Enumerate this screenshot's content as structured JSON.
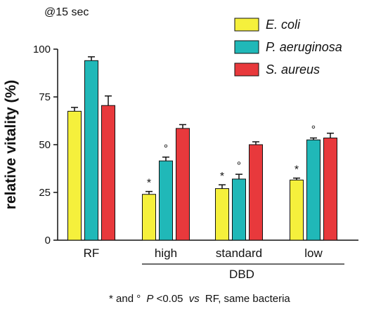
{
  "chart_data": {
    "type": "bar",
    "title": "@15 sec",
    "ylabel": "relative vitality (%)",
    "ylim": [
      0,
      100
    ],
    "yticks": [
      0,
      25,
      50,
      75,
      100
    ],
    "categories": [
      "RF",
      "high",
      "standard",
      "low"
    ],
    "group_label": "DBD",
    "series": [
      {
        "name": "E. coli",
        "color": "#f5f03c",
        "values": [
          67.5,
          24,
          27,
          31.5
        ],
        "errors": [
          2,
          1.5,
          2,
          1
        ],
        "markers": [
          "",
          "*",
          "*",
          "*"
        ]
      },
      {
        "name": "P. aeruginosa",
        "color": "#20b8b8",
        "values": [
          94,
          41.5,
          32,
          52.5
        ],
        "errors": [
          2,
          2,
          2.5,
          1
        ],
        "markers": [
          "",
          "°",
          "°",
          "°"
        ]
      },
      {
        "name": "S. aureus",
        "color": "#e8393c",
        "values": [
          70.5,
          58.5,
          50,
          53.5
        ],
        "errors": [
          5,
          2,
          1.5,
          2.5
        ],
        "markers": [
          "",
          "",
          "",
          ""
        ]
      }
    ],
    "legend_position": "top-right",
    "grid": false,
    "footnote": {
      "p1": "* and °",
      "p2": "P",
      "p3": "<0.05",
      "p4": "vs",
      "p5": "RF, same bacteria"
    }
  }
}
